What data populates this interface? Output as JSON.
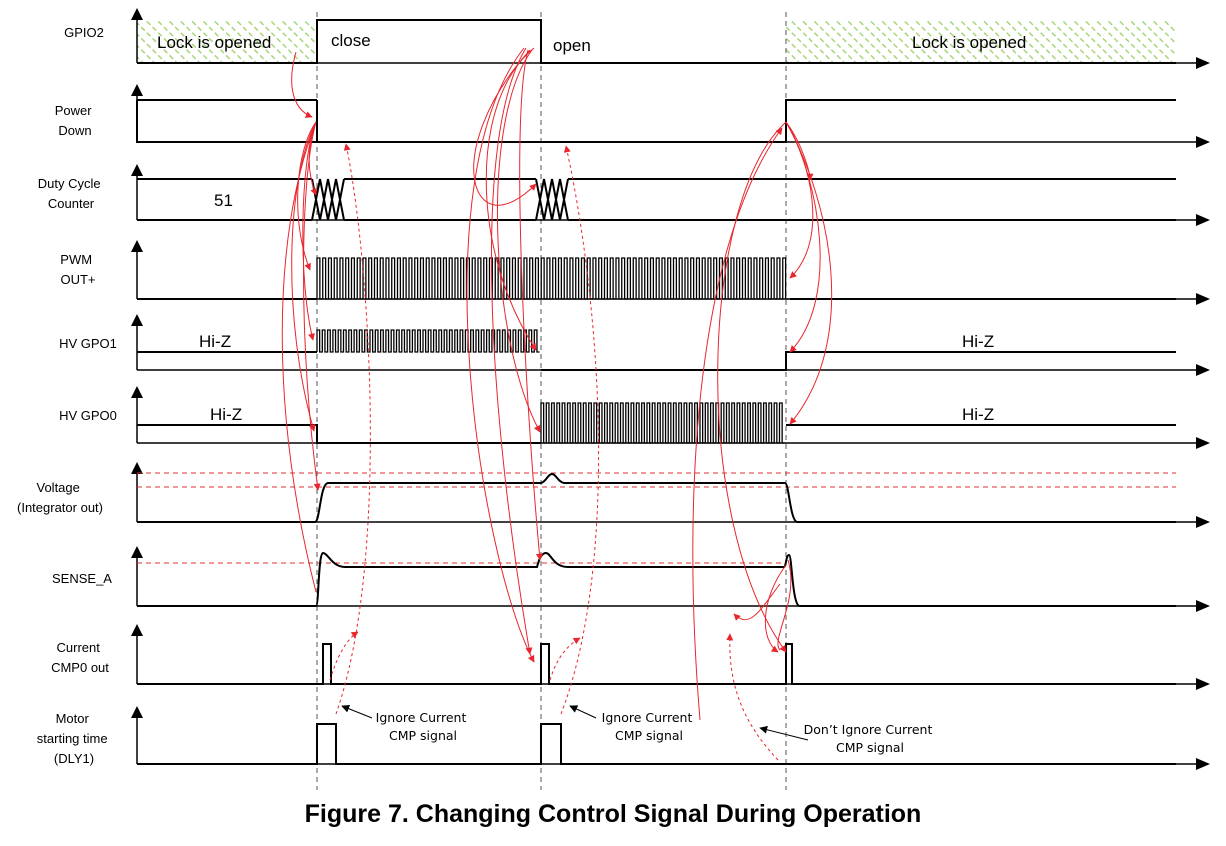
{
  "caption": "Figure 7. Changing Control Signal During Operation",
  "signals": {
    "gpio2": [
      "GPIO2"
    ],
    "power_down": [
      "Power",
      "Down"
    ],
    "duty_cycle_counter": [
      "Duty Cycle",
      "Counter"
    ],
    "pwm_out": [
      "PWM",
      "OUT+"
    ],
    "hv_gpo1": [
      "HV GPO1"
    ],
    "hv_gpo0": [
      "HV GPO0"
    ],
    "voltage": [
      "Voltage",
      "(Integrator out)"
    ],
    "sense_a": [
      "SENSE_A"
    ],
    "current_cmp0": [
      "Current",
      "CMP0 out"
    ],
    "motor_starting_time": [
      "Motor",
      "starting time",
      "(DLY1)"
    ]
  },
  "wave_labels": {
    "lock_opened": "Lock is opened",
    "close": "close",
    "open": "open",
    "counter_value": "51",
    "hiz": "Hi-Z"
  },
  "notes": {
    "ignore_1": [
      "Ignore Current",
      "CMP signal"
    ],
    "ignore_2": [
      "Ignore Current",
      "CMP signal"
    ],
    "dont_ignore": [
      "Don’t Ignore Current",
      "CMP signal"
    ]
  },
  "colors": {
    "causality_arrow": "#e8262d",
    "threshold": "#e03030",
    "hatch": "#a6d67a",
    "trace": "#000000"
  }
}
